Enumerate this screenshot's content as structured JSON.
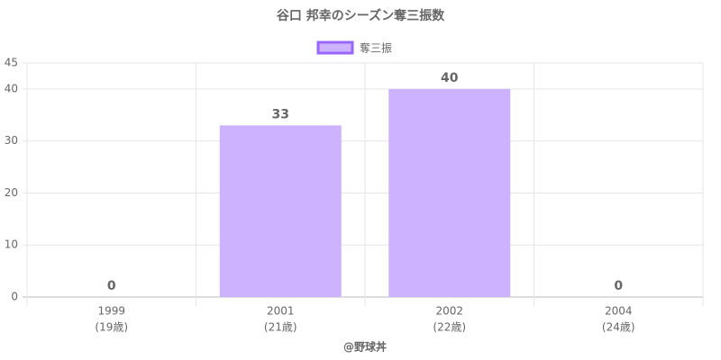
{
  "chart_data": {
    "type": "bar",
    "title": "谷口 邦幸のシーズン奪三振数",
    "legend": "奪三振",
    "categories": [
      [
        "1999",
        "(19歳)"
      ],
      [
        "2001",
        "(21歳)"
      ],
      [
        "2002",
        "(22歳)"
      ],
      [
        "2004",
        "(24歳)"
      ]
    ],
    "values": [
      0,
      33,
      40,
      0
    ],
    "color": "#cdb3ff",
    "border_color": "#9966ff",
    "ylim": [
      0,
      45
    ],
    "yticks": [
      0,
      10,
      20,
      30,
      40,
      45
    ],
    "grid": true,
    "x_label": "@野球丼"
  }
}
